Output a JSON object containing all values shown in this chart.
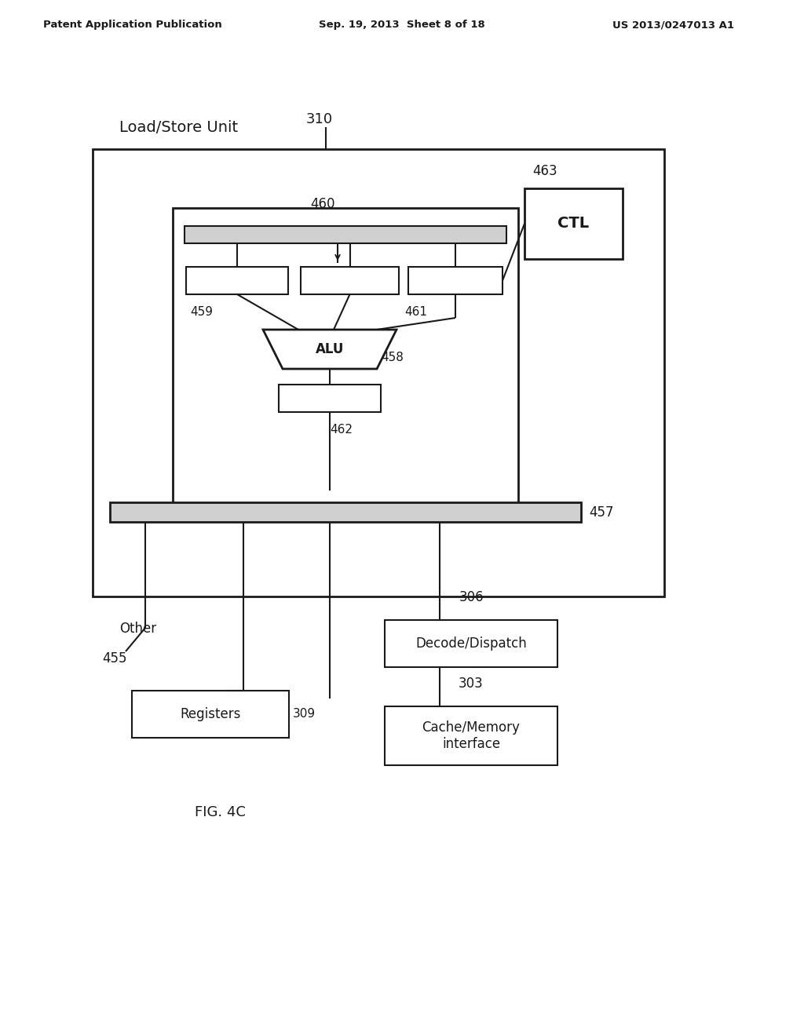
{
  "header_left": "Patent Application Publication",
  "header_center": "Sep. 19, 2013  Sheet 8 of 18",
  "header_right": "US 2013/0247013 A1",
  "fig_label": "FIG. 4C",
  "bg_color": "#ffffff",
  "text_color": "#1a1a1a",
  "labels": {
    "load_store": "Load/Store Unit",
    "load_store_num": "310",
    "ctl_num": "463",
    "ctl_label": "CTL",
    "bus_num": "460",
    "reg459_num": "459",
    "alu_label": "ALU",
    "alu_num": "458",
    "reg461_num": "461",
    "reg462_num": "462",
    "bus457_num": "457",
    "other_label": "Other",
    "other_num": "455",
    "registers_label": "Registers",
    "registers_num": "309",
    "decode_label": "Decode/Dispatch",
    "decode_num": "306",
    "cache_label": "Cache/Memory\ninterface",
    "cache_num": "303"
  }
}
